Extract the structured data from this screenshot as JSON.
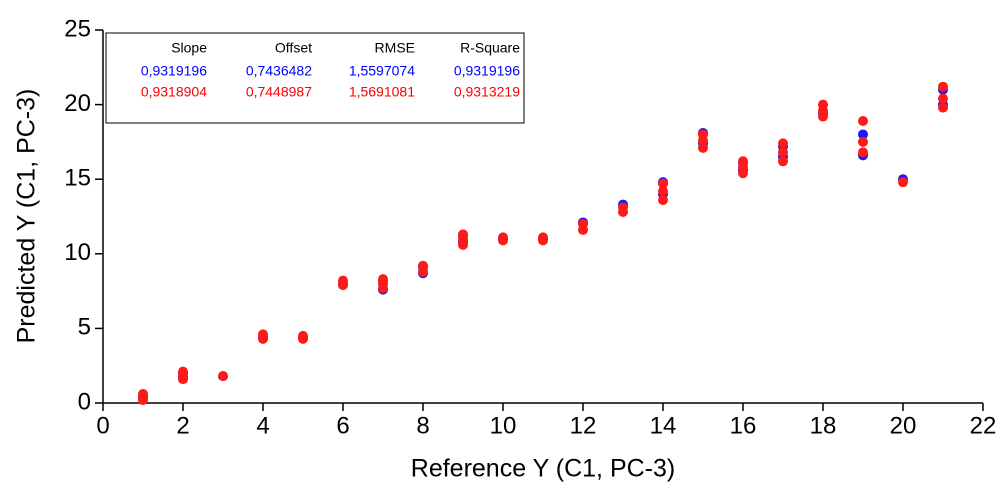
{
  "chart_data": {
    "type": "scatter",
    "x_label": "Reference Y (C1, PC-3)",
    "y_label": "Predicted Y (C1, PC-3)",
    "xlim": [
      0,
      22
    ],
    "ylim": [
      0,
      25
    ],
    "xticks": [
      0,
      2,
      4,
      6,
      8,
      10,
      12,
      14,
      16,
      18,
      20,
      22
    ],
    "yticks": [
      0,
      5,
      10,
      15,
      20,
      25
    ],
    "series": [
      {
        "color": "#1a1aff",
        "x": [
          1,
          1,
          2,
          2,
          3,
          4,
          5,
          6,
          7,
          7,
          8,
          8,
          9,
          9,
          10,
          11,
          12,
          13,
          14,
          14,
          15,
          15,
          16,
          16,
          17,
          17,
          18,
          19,
          19,
          20,
          21,
          21
        ],
        "values": [
          0.3,
          0.5,
          1.7,
          2.0,
          1.8,
          4.4,
          4.4,
          8.0,
          7.6,
          8.2,
          8.7,
          9.1,
          10.8,
          11.2,
          11.0,
          11.0,
          12.1,
          13.3,
          14.0,
          14.8,
          17.4,
          18.1,
          15.6,
          16.1,
          16.5,
          17.2,
          19.4,
          16.6,
          18.0,
          15.0,
          20.0,
          21.0
        ]
      },
      {
        "color": "#ff1a1a",
        "x": [
          1,
          1,
          1,
          2,
          2,
          2,
          3,
          4,
          4,
          5,
          5,
          6,
          6,
          7,
          7,
          7,
          8,
          8,
          9,
          9,
          9,
          10,
          10,
          11,
          11,
          12,
          12,
          13,
          13,
          14,
          14,
          14,
          15,
          15,
          15,
          16,
          16,
          16,
          17,
          17,
          17,
          18,
          18,
          18,
          19,
          19,
          19,
          20,
          21,
          21,
          21
        ],
        "values": [
          0.2,
          0.4,
          0.6,
          1.6,
          1.8,
          2.1,
          1.8,
          4.3,
          4.6,
          4.3,
          4.5,
          7.9,
          8.2,
          7.7,
          8.0,
          8.3,
          8.8,
          9.2,
          10.6,
          11.0,
          11.3,
          10.9,
          11.1,
          10.9,
          11.1,
          11.6,
          12.0,
          12.8,
          13.1,
          13.6,
          14.2,
          14.7,
          17.1,
          17.6,
          18.0,
          15.4,
          15.8,
          16.2,
          16.2,
          16.8,
          17.4,
          19.2,
          19.6,
          20.0,
          16.8,
          17.5,
          18.9,
          14.8,
          19.8,
          20.4,
          21.2
        ]
      }
    ],
    "stats": {
      "headers": [
        "Slope",
        "Offset",
        "RMSE",
        "R-Square"
      ],
      "rows": [
        {
          "color": "#0000ff",
          "values": [
            "0,9319196",
            "0,7436482",
            "1,5597074",
            "0,9319196"
          ]
        },
        {
          "color": "#ff0000",
          "values": [
            "0,9318904",
            "0,7448987",
            "1,5691081",
            "0,9313219"
          ]
        }
      ]
    }
  }
}
